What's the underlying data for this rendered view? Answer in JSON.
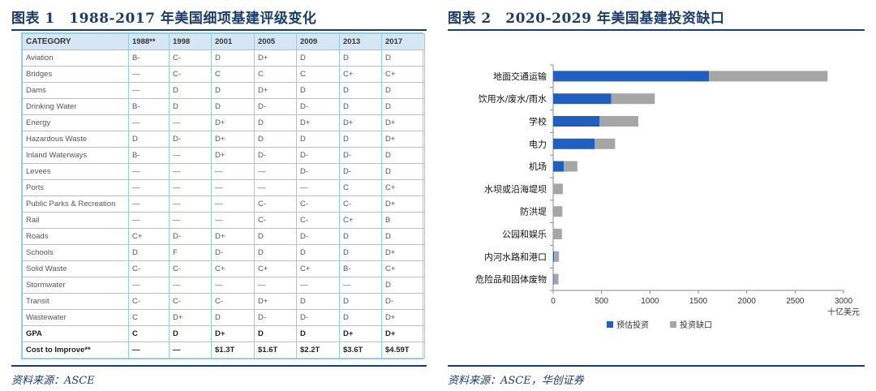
{
  "left_panel": {
    "title": "图表 1　1988-2017 年美国细项基建评级变化",
    "source": "资料来源：ASCE"
  },
  "right_panel": {
    "title": "图表 2　2020-2029 年美国基建投资缺口",
    "source": "资料来源：ASCE，华创证券"
  },
  "grades_table": {
    "headers": [
      "CATEGORY",
      "1988**",
      "1998",
      "2001",
      "2005",
      "2009",
      "2013",
      "2017"
    ],
    "rows": [
      {
        "category": "Aviation",
        "grades": [
          "B-",
          "C-",
          "D",
          "D+",
          "D",
          "D",
          "D"
        ]
      },
      {
        "category": "Bridges",
        "grades": [
          "—",
          "C-",
          "C",
          "C",
          "C",
          "C+",
          "C+"
        ]
      },
      {
        "category": "Dams",
        "grades": [
          "—",
          "D",
          "D",
          "D+",
          "D",
          "D",
          "D"
        ]
      },
      {
        "category": "Drinking Water",
        "grades": [
          "B-",
          "D",
          "D",
          "D-",
          "D-",
          "D",
          "D"
        ]
      },
      {
        "category": "Energy",
        "grades": [
          "—",
          "—",
          "D+",
          "D",
          "D+",
          "D+",
          "D+"
        ]
      },
      {
        "category": "Hazardous Waste",
        "grades": [
          "D",
          "D-",
          "D+",
          "D",
          "D",
          "D",
          "D+"
        ]
      },
      {
        "category": "Inland Waterways",
        "grades": [
          "B-",
          "—",
          "D+",
          "D-",
          "D-",
          "D-",
          "D"
        ]
      },
      {
        "category": "Levees",
        "grades": [
          "—",
          "—",
          "—",
          "—",
          "D-",
          "D-",
          "D"
        ]
      },
      {
        "category": "Ports",
        "grades": [
          "—",
          "—",
          "—",
          "—",
          "—",
          "C",
          "C+"
        ]
      },
      {
        "category": "Public Parks & Recreation",
        "grades": [
          "—",
          "—",
          "—",
          "C-",
          "C-",
          "C-",
          "D+"
        ]
      },
      {
        "category": "Rail",
        "grades": [
          "—",
          "—",
          "—",
          "C-",
          "C-",
          "C+",
          "B"
        ]
      },
      {
        "category": "Roads",
        "grades": [
          "C+",
          "D-",
          "D+",
          "D",
          "D-",
          "D",
          "D"
        ]
      },
      {
        "category": "Schools",
        "grades": [
          "D",
          "F",
          "D-",
          "D",
          "D",
          "D",
          "D+"
        ]
      },
      {
        "category": "Solid Waste",
        "grades": [
          "C-",
          "C-",
          "C+",
          "C+",
          "C+",
          "B-",
          "C+"
        ]
      },
      {
        "category": "Stormwater",
        "grades": [
          "—",
          "—",
          "—",
          "—",
          "—",
          "—",
          "D"
        ]
      },
      {
        "category": "Transit",
        "grades": [
          "C-",
          "C-",
          "C-",
          "D+",
          "D",
          "D",
          "D-"
        ]
      },
      {
        "category": "Wastewater",
        "grades": [
          "C",
          "D+",
          "D",
          "D-",
          "D-",
          "D",
          "D+"
        ]
      },
      {
        "category": "GPA",
        "grades": [
          "C",
          "D",
          "D+",
          "D",
          "D",
          "D+",
          "D+"
        ],
        "bold": true
      },
      {
        "category": "Cost to Improve**",
        "grades": [
          "—",
          "—",
          "$1.3T",
          "$1.6T",
          "$2.2T",
          "$3.6T",
          "$4.59T"
        ],
        "bold": true
      }
    ]
  },
  "chart_data": {
    "type": "bar",
    "orientation": "horizontal",
    "stacked": true,
    "title": "",
    "xlabel": "十亿美元",
    "ylabel": "",
    "xlim": [
      0,
      3000
    ],
    "xticks": [
      0,
      500,
      1000,
      1500,
      2000,
      2500,
      3000
    ],
    "categories": [
      "地面交通运输",
      "饮用水/废水/雨水",
      "学校",
      "电力",
      "机场",
      "水坝或沿海堤坝",
      "防洪堤",
      "公园和娱乐",
      "内河水路和港口",
      "危险品和固体废物"
    ],
    "series": [
      {
        "name": "预估投资",
        "color": "#1f5fbf",
        "values": [
          1610,
          600,
          480,
          430,
          110,
          0,
          0,
          0,
          10,
          5
        ]
      },
      {
        "name": "投资缺口",
        "color": "#a6a6a6",
        "values": [
          1225,
          450,
          400,
          210,
          140,
          100,
          95,
          90,
          50,
          50
        ]
      }
    ],
    "grid": false,
    "legend": "bottom"
  }
}
